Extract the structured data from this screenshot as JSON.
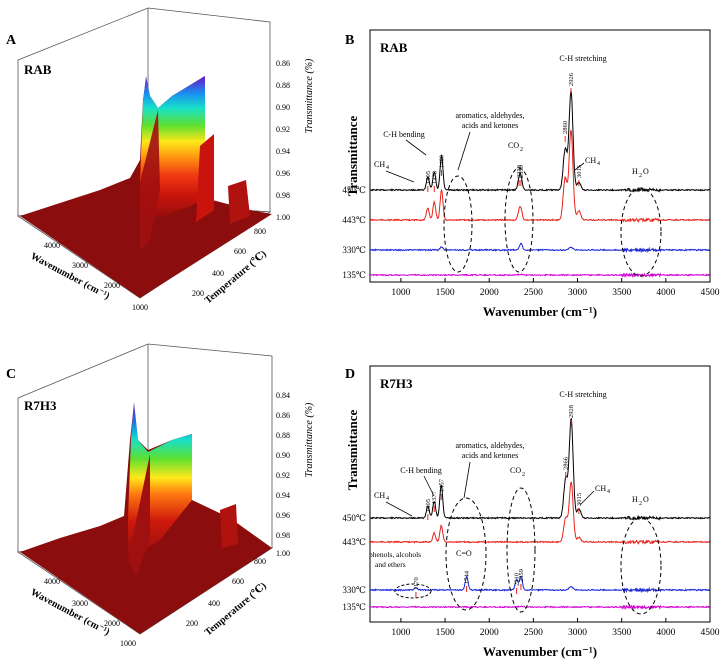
{
  "panels": {
    "A": {
      "letter": "A",
      "sample": "RAB"
    },
    "B": {
      "letter": "B",
      "sample": "RAB"
    },
    "C": {
      "letter": "C",
      "sample": "R7H3"
    },
    "D": {
      "letter": "D",
      "sample": "R7H3"
    }
  },
  "colors": {
    "c450": "#000000",
    "c443": "#e8231c",
    "c330": "#1a24d6",
    "c135": "#d400d4",
    "surface_base": "#8b0d0d"
  },
  "chart_data": [
    {
      "id": "A",
      "type": "surface3d",
      "title": "RAB",
      "xlabel": "Wavenumber (cm⁻¹)",
      "ylabel": "Temperature (℃)",
      "zlabel": "Transmittance (%)",
      "xticks": [
        "4000",
        "3000",
        "2000",
        "1000"
      ],
      "yticks": [
        "200",
        "400",
        "600",
        "800"
      ],
      "zticks": [
        "0.86",
        "0.88",
        "0.90",
        "0.92",
        "0.94",
        "0.96",
        "0.98",
        "1.00"
      ],
      "zlim": [
        0.86,
        1.0
      ]
    },
    {
      "id": "B",
      "type": "line",
      "title": "RAB",
      "xlabel": "Wavenumber (cm⁻¹)",
      "ylabel": "Transmittance",
      "xlim": [
        650,
        4500
      ],
      "xticks": [
        "1000",
        "1500",
        "2000",
        "2500",
        "3000",
        "3500",
        "4000",
        "4500"
      ],
      "series": [
        {
          "name": "450℃",
          "peaks": [
            [
              1305,
              0.45
            ],
            [
              1378,
              0.6
            ],
            [
              1460,
              1.15
            ],
            [
              2338,
              0.3
            ],
            [
              2359,
              0.38
            ],
            [
              2860,
              1.35
            ],
            [
              2926,
              3.3
            ],
            [
              3015,
              0.25
            ]
          ]
        },
        {
          "name": "443℃",
          "peaks": [
            [
              1305,
              0.4
            ],
            [
              1378,
              0.6
            ],
            [
              1460,
              1.0
            ],
            [
              2338,
              0.25
            ],
            [
              2359,
              0.3
            ],
            [
              2860,
              1.4
            ],
            [
              2926,
              3.0
            ],
            [
              3015,
              0.3
            ]
          ]
        },
        {
          "name": "330℃",
          "peaks": [
            [
              1460,
              0.1
            ],
            [
              2359,
              0.22
            ],
            [
              2926,
              0.08
            ]
          ]
        },
        {
          "name": "135℃",
          "peaks": [
            [
              2359,
              0.03
            ]
          ]
        }
      ],
      "annotations": {
        "ch_stretch": "C-H stretching",
        "arom_line1": "aromatics, aldehydes,",
        "arom_line2": "acids and ketones",
        "ch_bend": "C-H bending",
        "ch4": "CH",
        "co2": "CO",
        "h2o": "H",
        "p1305": "1305",
        "p1378": "1378",
        "p1460": "1460",
        "p2338": "2338",
        "p2359": "2359",
        "p2860": "2860",
        "p2926": "2926",
        "p3015": "3015"
      }
    },
    {
      "id": "C",
      "type": "surface3d",
      "title": "R7H3",
      "xlabel": "Wavenumber (cm⁻¹)",
      "ylabel": "Temperature (℃)",
      "zlabel": "Transmittance (%)",
      "xticks": [
        "4000",
        "3000",
        "2000",
        "1000"
      ],
      "yticks": [
        "200",
        "400",
        "600",
        "800"
      ],
      "zticks": [
        "0.84",
        "0.86",
        "0.88",
        "0.90",
        "0.92",
        "0.94",
        "0.96",
        "0.98",
        "1.00"
      ],
      "zlim": [
        0.84,
        1.0
      ]
    },
    {
      "id": "D",
      "type": "line",
      "title": "R7H3",
      "xlabel": "Wavenumber (cm⁻¹)",
      "ylabel": "Transmittance",
      "xlim": [
        650,
        4500
      ],
      "xticks": [
        "1000",
        "1500",
        "2000",
        "2500",
        "3000",
        "3500",
        "4000",
        "4500"
      ],
      "series": [
        {
          "name": "450℃",
          "peaks": [
            [
              1305,
              0.4
            ],
            [
              1377,
              0.55
            ],
            [
              1457,
              1.1
            ],
            [
              2866,
              1.3
            ],
            [
              2928,
              3.3
            ],
            [
              3015,
              0.3
            ]
          ]
        },
        {
          "name": "443℃",
          "peaks": [
            [
              1377,
              0.3
            ],
            [
              1457,
              0.55
            ],
            [
              2866,
              0.8
            ],
            [
              2928,
              2.0
            ],
            [
              3015,
              0.15
            ]
          ]
        },
        {
          "name": "330℃",
          "peaks": [
            [
              1170,
              0.08
            ],
            [
              1744,
              0.45
            ],
            [
              2310,
              0.35
            ],
            [
              2359,
              0.45
            ],
            [
              2928,
              0.1
            ]
          ]
        },
        {
          "name": "135℃",
          "peaks": [
            [
              2359,
              0.03
            ]
          ]
        }
      ],
      "annotations": {
        "ch_stretch": "C-H stretching",
        "arom_line1": "aromatics, aldehydes,",
        "arom_line2": "acids and ketones",
        "ch_bend": "C-H bending",
        "ch4": "CH",
        "co2": "CO",
        "h2o": "H",
        "co": "C=O",
        "phenols1": "phenols, alcohols",
        "phenols2": "and ethers",
        "p1170": "1170",
        "p1305": "1305",
        "p1377": "1377",
        "p1457": "1457",
        "p1744": "1744",
        "p2310": "2310",
        "p2359": "2359",
        "p2866": "2866",
        "p2928": "2928",
        "p3015": "3015"
      }
    }
  ]
}
